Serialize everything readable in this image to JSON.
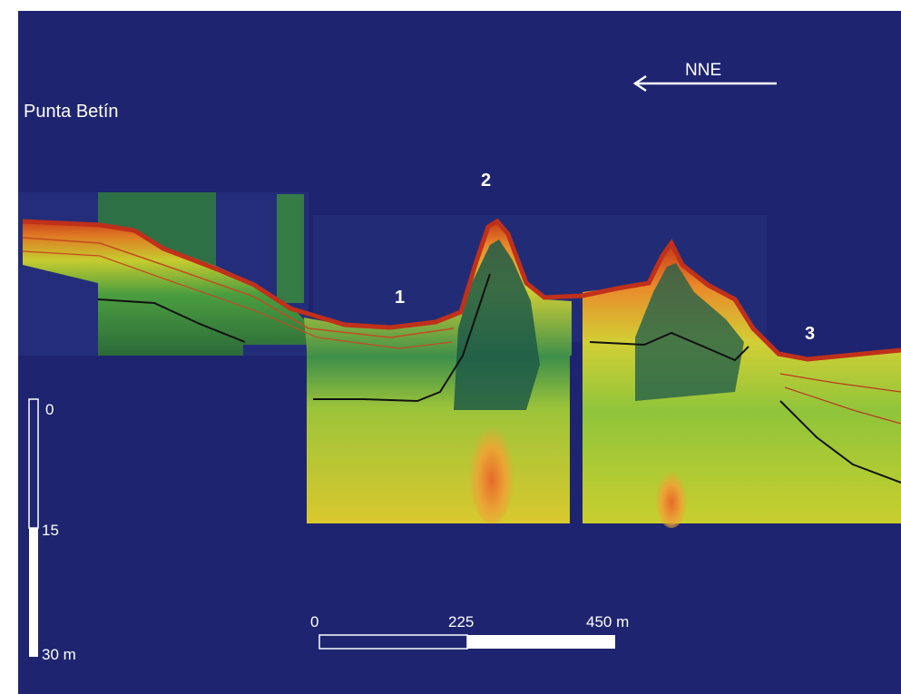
{
  "location": "Punta Betín",
  "direction": "NNE",
  "features": [
    {
      "label": "1"
    },
    {
      "label": "2"
    },
    {
      "label": "3"
    }
  ],
  "depth_scale": {
    "ticks": [
      "0",
      "15",
      "30 m"
    ]
  },
  "distance_scale": {
    "ticks": [
      "0",
      "225",
      "450 m"
    ]
  },
  "colors": {
    "background": "#1f2470",
    "scale_white": "#ffffff",
    "seabed_red": "#c8391a",
    "sediment_orange": "#e67a25",
    "layer_green": "#3f9a3c",
    "acoustic_yellow": "#cfd12c",
    "reflector_black": "#111111"
  },
  "icons": [
    "arrow-left-icon"
  ]
}
